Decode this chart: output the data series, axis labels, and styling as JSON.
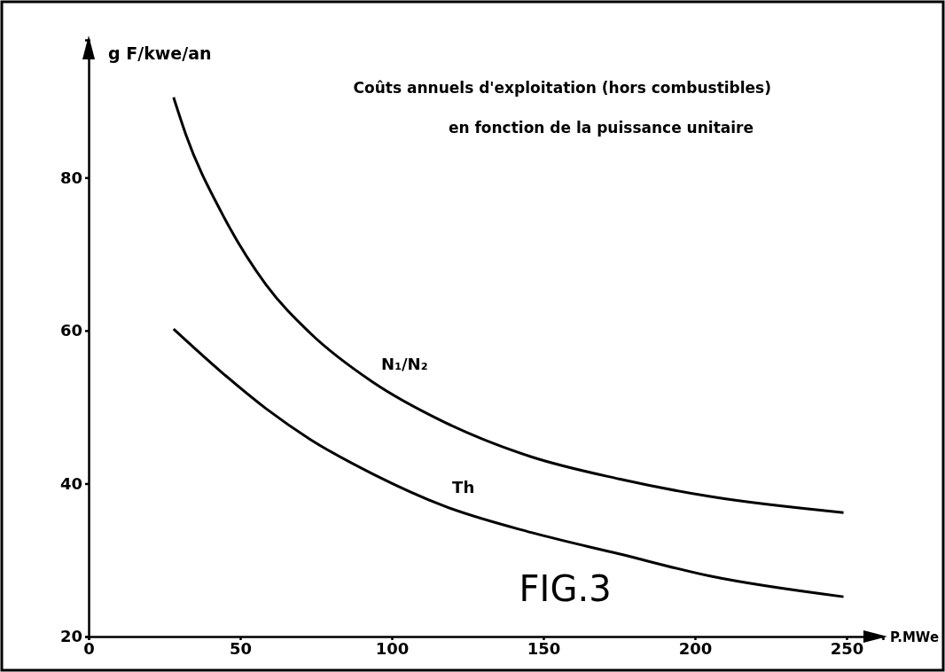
{
  "chart_data": {
    "type": "line",
    "title": "Coûts annuels d'exploitation (hors combustibles)",
    "subtitle": "en fonction de la puissance unitaire",
    "xlabel": "P.MWe",
    "ylabel": "g F/kwe/an",
    "xlim": [
      0,
      262
    ],
    "ylim": [
      20,
      98
    ],
    "xticks": [
      0,
      50,
      100,
      150,
      200,
      250
    ],
    "yticks": [
      20,
      40,
      60,
      80
    ],
    "grid": false,
    "legend": false,
    "marker": "none",
    "line_style": "solid",
    "annotations": [
      "FIG.3"
    ],
    "series": [
      {
        "name": "N₁/N₂",
        "color": "#000000",
        "x": [
          28,
          32,
          44,
          58.5,
          73,
          93.6,
          117,
          146,
          175,
          205,
          249
        ],
        "values": [
          90.5,
          85.7,
          75.3,
          66,
          59.7,
          53.3,
          48.1,
          43.5,
          40.6,
          38.3,
          36.2
        ]
      },
      {
        "name": "Th",
        "color": "#000000",
        "x": [
          28,
          44,
          58.5,
          73,
          94,
          117,
          146,
          175,
          205,
          249
        ],
        "values": [
          60.2,
          54.5,
          49.8,
          45.8,
          41.2,
          37.1,
          33.6,
          30.8,
          27.9,
          25.2
        ]
      }
    ]
  }
}
